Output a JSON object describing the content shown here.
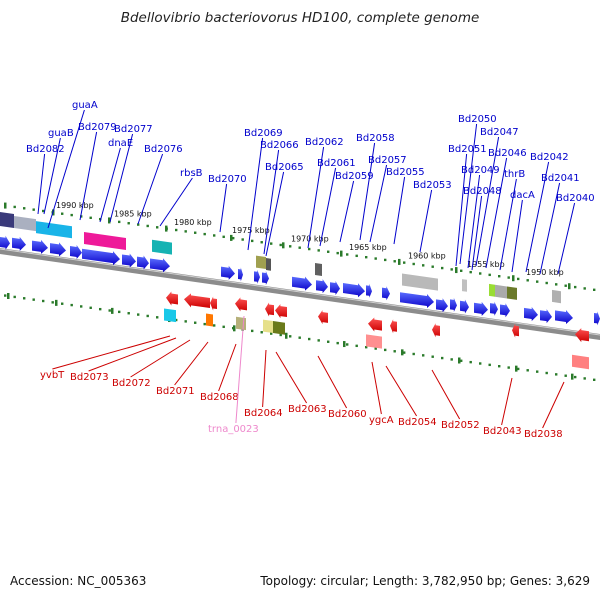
{
  "title": "Bdellovibrio bacteriovorus HD100, complete genome",
  "footer": {
    "accession": "Accession: NC_005363",
    "summary": "Topology: circular; Length: 3,782,950 bp; Genes: 3,629"
  },
  "colors": {
    "forward_gene": "#1400e6",
    "reverse_gene": "#ff0000",
    "forward_label": "#0000cc",
    "reverse_label": "#cc0000",
    "trna_label": "#ee88cc",
    "scale_tick": "#2a7a2a",
    "backbone": "#808080"
  },
  "scale_labels": [
    "1990 kbp",
    "1985 kbp",
    "1980 kbp",
    "1975 kbp",
    "1970 kbp",
    "1965 kbp",
    "1960 kbp",
    "1955 kbp",
    "1950 kbp"
  ],
  "forward_labels": [
    "guaA",
    "guaB",
    "Bd2079",
    "Bd2077",
    "Bd2082",
    "dnaE",
    "Bd2076",
    "rbsB",
    "Bd2070",
    "Bd2069",
    "Bd2066",
    "Bd2065",
    "Bd2062",
    "Bd2061",
    "Bd2058",
    "Bd2057",
    "Bd2059",
    "Bd2055",
    "Bd2053",
    "Bd2050",
    "Bd2047",
    "Bd2051",
    "Bd2046",
    "Bd2049",
    "thrB",
    "Bd2042",
    "Bd2048",
    "dacA",
    "Bd2041",
    "Bd2040"
  ],
  "reverse_labels": [
    "yvbT",
    "Bd2073",
    "Bd2072",
    "Bd2071",
    "Bd2068",
    "trna_0023",
    "Bd2064",
    "Bd2063",
    "Bd2060",
    "ygcA",
    "Bd2054",
    "Bd2052",
    "Bd2043",
    "Bd2038"
  ]
}
